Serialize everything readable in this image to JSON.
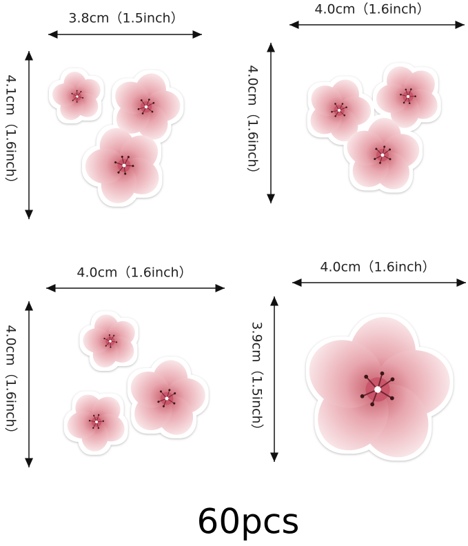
{
  "stickers": [
    {
      "width": "3.8cm（1.5inch）",
      "height": "4.1cm（1.6inch）"
    },
    {
      "width": "4.0cm（1.6inch）",
      "height": "4.0cm（1.6inch）"
    },
    {
      "width": "4.0cm（1.6inch）",
      "height": "4.0cm（1.6inch）"
    },
    {
      "width": "4.0cm（1.6inch）",
      "height": "3.9cm（1.5inch）"
    }
  ],
  "footer": "60pcs"
}
